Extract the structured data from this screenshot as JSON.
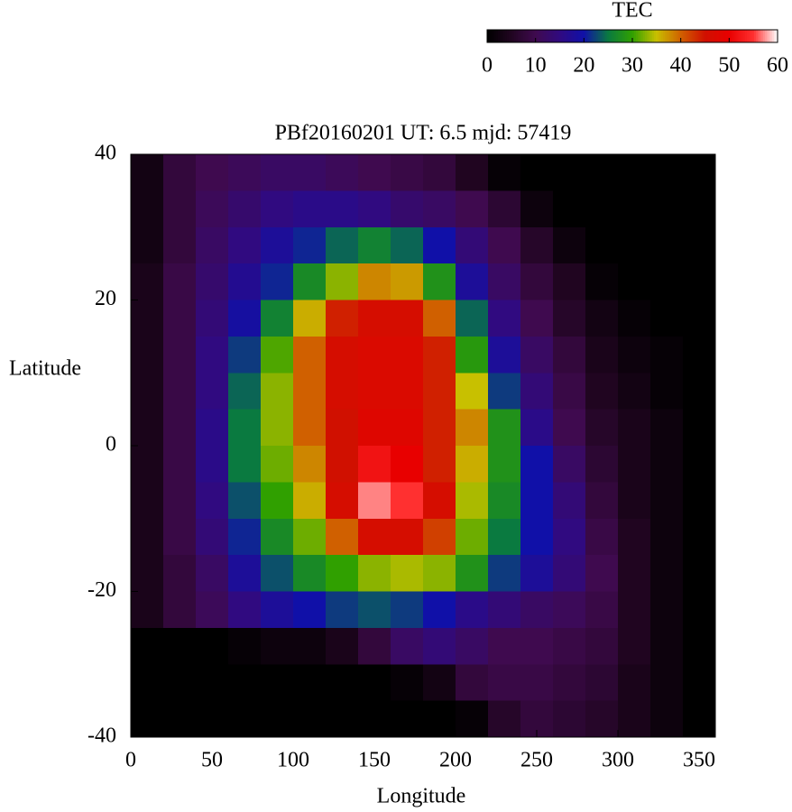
{
  "chart_data": {
    "type": "heatmap",
    "title": "PBf20160201  UT: 6.5  mjd: 57419",
    "x_label": "Longitude",
    "y_label": "Latitude",
    "xbins": [
      0,
      20,
      40,
      60,
      80,
      100,
      120,
      140,
      160,
      180,
      200,
      220,
      240,
      260,
      280,
      300,
      320,
      340,
      360
    ],
    "ybins": [
      40,
      35,
      30,
      25,
      20,
      15,
      10,
      5,
      0,
      -5,
      -10,
      -15,
      -20,
      -25,
      -30,
      -35,
      -40
    ],
    "values": [
      [
        3,
        8,
        10,
        11,
        12,
        12,
        11,
        10,
        9,
        8,
        5,
        1,
        0,
        0,
        0,
        0,
        0,
        0
      ],
      [
        3,
        8,
        11,
        13,
        15,
        16,
        16,
        15,
        13,
        12,
        10,
        7,
        2,
        0,
        0,
        0,
        0,
        0
      ],
      [
        3,
        8,
        12,
        15,
        18,
        21,
        24,
        26,
        24,
        20,
        14,
        10,
        6,
        2,
        0,
        0,
        0,
        0
      ],
      [
        4,
        9,
        13,
        17,
        21,
        27,
        33,
        38,
        37,
        28,
        18,
        12,
        8,
        5,
        1,
        0,
        0,
        0
      ],
      [
        4,
        9,
        14,
        19,
        26,
        36,
        44,
        46,
        46,
        40,
        24,
        15,
        10,
        6,
        3,
        1,
        0,
        0
      ],
      [
        4,
        9,
        15,
        22,
        31,
        40,
        46,
        47,
        47,
        44,
        29,
        18,
        12,
        8,
        4,
        2,
        1,
        0
      ],
      [
        4,
        9,
        15,
        24,
        33,
        40,
        46,
        47,
        47,
        44,
        35,
        22,
        14,
        9,
        5,
        3,
        1,
        0
      ],
      [
        4,
        9,
        16,
        25,
        33,
        40,
        45,
        48,
        48,
        44,
        38,
        28,
        16,
        10,
        6,
        4,
        2,
        0
      ],
      [
        4,
        9,
        16,
        25,
        32,
        38,
        45,
        52,
        50,
        44,
        36,
        28,
        20,
        12,
        7,
        4,
        2,
        0
      ],
      [
        4,
        9,
        15,
        23,
        30,
        36,
        46,
        57,
        55,
        46,
        34,
        27,
        20,
        14,
        8,
        4,
        2,
        0
      ],
      [
        4,
        9,
        14,
        21,
        27,
        32,
        40,
        46,
        46,
        42,
        32,
        25,
        20,
        15,
        9,
        5,
        2,
        0
      ],
      [
        4,
        8,
        12,
        18,
        23,
        27,
        30,
        33,
        34,
        33,
        28,
        22,
        18,
        14,
        10,
        5,
        2,
        0
      ],
      [
        4,
        8,
        11,
        15,
        18,
        20,
        22,
        23,
        22,
        20,
        16,
        14,
        12,
        11,
        9,
        5,
        2,
        0
      ],
      [
        0,
        0,
        0,
        1,
        2,
        2,
        4,
        8,
        12,
        14,
        12,
        10,
        10,
        9,
        8,
        5,
        2,
        0
      ],
      [
        0,
        0,
        0,
        0,
        0,
        0,
        0,
        0,
        1,
        3,
        8,
        9,
        9,
        8,
        7,
        4,
        2,
        0
      ],
      [
        0,
        0,
        0,
        0,
        0,
        0,
        0,
        0,
        0,
        0,
        1,
        6,
        8,
        7,
        6,
        4,
        2,
        0
      ]
    ],
    "xlim": [
      0,
      360
    ],
    "ylim": [
      -40,
      40
    ],
    "xticks": [
      0,
      50,
      100,
      150,
      200,
      250,
      300,
      350
    ],
    "yticks": [
      -40,
      -20,
      0,
      20,
      40
    ],
    "colorbar_label": "TEC",
    "zlim": [
      0,
      60
    ],
    "zticks": [
      0,
      10,
      20,
      30,
      40,
      50,
      60
    ],
    "colormap": [
      "#000000",
      "#200520",
      "#3f0a4f",
      "#300a80",
      "#1010a8",
      "#0a7a40",
      "#30a000",
      "#c8c000",
      "#d06000",
      "#d01000",
      "#e80000",
      "#ff3030",
      "#ffffff"
    ]
  }
}
